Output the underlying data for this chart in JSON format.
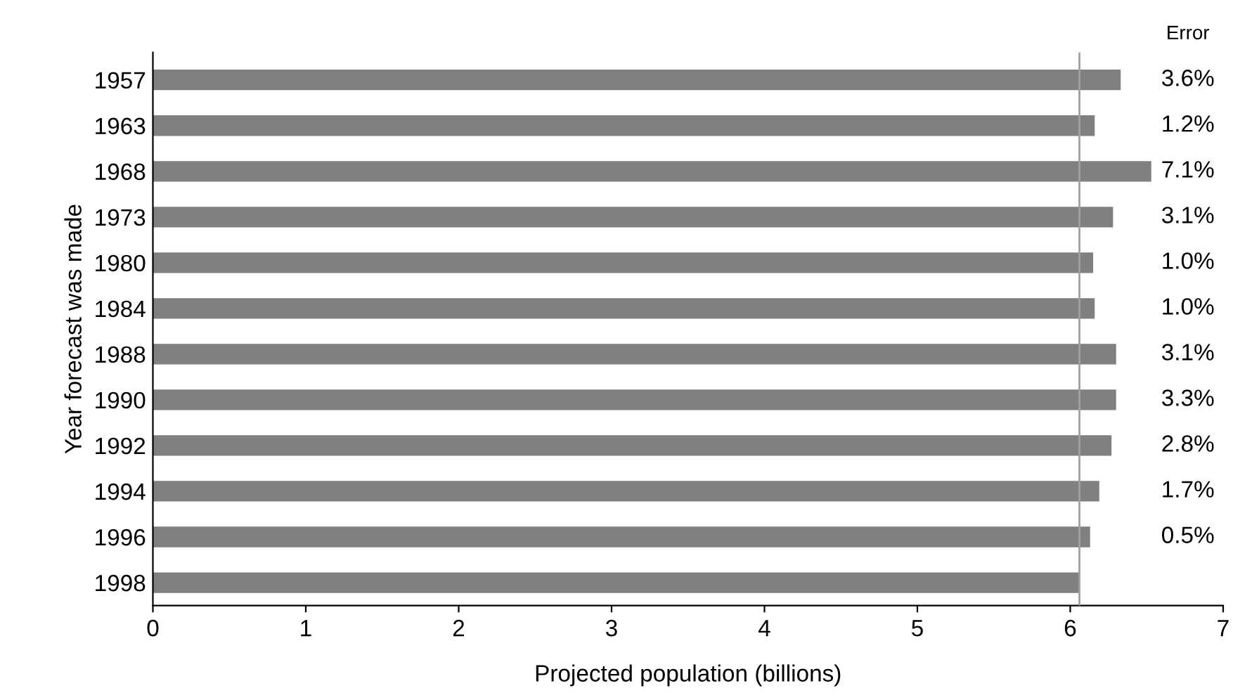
{
  "chart_data": {
    "type": "bar",
    "orientation": "horizontal",
    "xlabel": "Projected population (billions)",
    "ylabel": "Year forecast was made",
    "categories": [
      "1957",
      "1963",
      "1968",
      "1973",
      "1980",
      "1984",
      "1988",
      "1990",
      "1992",
      "1994",
      "1996",
      "1998"
    ],
    "values": [
      6.33,
      6.16,
      6.53,
      6.28,
      6.15,
      6.16,
      6.3,
      6.3,
      6.27,
      6.19,
      6.13,
      6.06
    ],
    "annotations": [
      "Error",
      "3.6%",
      "1.2%",
      "7.1%",
      "3.1%",
      "1.0%",
      "1.0%",
      "3.1%",
      "3.3%",
      "2.8%",
      "1.7%",
      "0.5%"
    ],
    "color": "#808080",
    "xlim": [
      0,
      7
    ],
    "xticks": [
      0,
      1,
      2,
      3,
      4,
      5,
      6,
      7
    ],
    "ref_lines": [
      {
        "axis": "x",
        "value": 6.06,
        "color": "#a0a0a0"
      }
    ],
    "grid": false
  }
}
